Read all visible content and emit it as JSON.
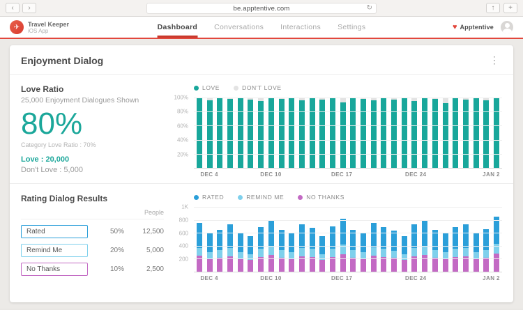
{
  "browser": {
    "url": "be.apptentive.com"
  },
  "icons": {
    "back": "‹",
    "forward": "›",
    "refresh": "↻",
    "share": "↑",
    "new_tab": "+",
    "kebab": "⋮",
    "brand_heart": "♥",
    "app_glyph": "✈"
  },
  "header": {
    "app_name": "Travel Keeper",
    "app_platform": "iOS App",
    "nav": [
      {
        "label": "Dashboard"
      },
      {
        "label": "Conversations"
      },
      {
        "label": "Interactions"
      },
      {
        "label": "Settings"
      }
    ],
    "brand": "Apptentive"
  },
  "card": {
    "title": "Enjoyment Dialog"
  },
  "love_ratio": {
    "title": "Love Ratio",
    "subtitle": "25,000 Enjoyment Dialogues Shown",
    "big_value": "80%",
    "caption": "Category Love Ratio : 70%",
    "love_stat": "Love : 20,000",
    "dont_love_stat": "Don't Love : 5,000"
  },
  "rating": {
    "title": "Rating Dialog Results",
    "people_header": "People",
    "rows": [
      {
        "label": "Rated",
        "percent": "50%",
        "people": "12,500",
        "color": "#2b9fd9"
      },
      {
        "label": "Remind Me",
        "percent": "20%",
        "people": "5,000",
        "color": "#7fd0ec"
      },
      {
        "label": "No Thanks",
        "percent": "10%",
        "people": "2,500",
        "color": "#c36ac4"
      }
    ]
  },
  "chart_data": [
    {
      "type": "bar",
      "stacked": true,
      "ylim": [
        0,
        100
      ],
      "y_ticks": [
        "100%",
        "80%",
        "60%",
        "40%",
        "20%"
      ],
      "x_tick_labels": [
        "DEC 4",
        "DEC 10",
        "DEC 17",
        "DEC 24",
        "JAN 2"
      ],
      "legend": [
        {
          "name": "LOVE",
          "color": "#18a79b"
        },
        {
          "name": "DON'T LOVE",
          "color": "#e3e3e3"
        }
      ],
      "series": [
        {
          "name": "LOVE",
          "color": "#18a79b",
          "values": [
            100,
            96,
            100,
            98,
            100,
            97,
            95,
            100,
            98,
            100,
            96,
            100,
            97,
            100,
            93,
            100,
            98,
            96,
            100,
            97,
            100,
            95,
            100,
            98,
            92,
            100,
            97,
            100,
            96,
            100
          ]
        },
        {
          "name": "DON'T LOVE",
          "color": "#e3e3e3",
          "values": [
            0,
            4,
            0,
            2,
            0,
            3,
            5,
            0,
            2,
            0,
            4,
            0,
            3,
            0,
            7,
            0,
            2,
            4,
            0,
            3,
            0,
            5,
            0,
            2,
            8,
            0,
            3,
            0,
            4,
            0
          ]
        }
      ]
    },
    {
      "type": "bar",
      "stacked": true,
      "ylim": [
        0,
        1000
      ],
      "y_ticks": [
        "1K",
        "800",
        "600",
        "400",
        "200"
      ],
      "x_tick_labels": [
        "DEC 4",
        "DEC 10",
        "DEC 17",
        "DEC 24",
        "JAN 2"
      ],
      "legend": [
        {
          "name": "RATED",
          "color": "#2b9fd9"
        },
        {
          "name": "REMIND ME",
          "color": "#7fd0ec"
        },
        {
          "name": "NO THANKS",
          "color": "#c36ac4"
        }
      ],
      "series": [
        {
          "name": "NO THANKS",
          "color": "#c36ac4",
          "values": [
            250,
            200,
            220,
            240,
            200,
            180,
            230,
            260,
            220,
            200,
            240,
            230,
            180,
            230,
            270,
            220,
            200,
            250,
            230,
            210,
            180,
            240,
            260,
            220,
            200,
            230,
            240,
            200,
            220,
            280
          ]
        },
        {
          "name": "REMIND ME",
          "color": "#7fd0ec",
          "values": [
            120,
            100,
            110,
            130,
            100,
            90,
            120,
            140,
            110,
            100,
            130,
            120,
            90,
            120,
            150,
            110,
            100,
            130,
            120,
            110,
            90,
            130,
            140,
            110,
            100,
            120,
            130,
            100,
            110,
            150
          ]
        },
        {
          "name": "RATED",
          "color": "#2b9fd9",
          "values": [
            380,
            300,
            320,
            360,
            300,
            280,
            340,
            380,
            320,
            300,
            360,
            330,
            280,
            350,
            400,
            320,
            300,
            370,
            340,
            310,
            280,
            360,
            390,
            320,
            300,
            340,
            360,
            300,
            330,
            420
          ]
        }
      ]
    }
  ]
}
